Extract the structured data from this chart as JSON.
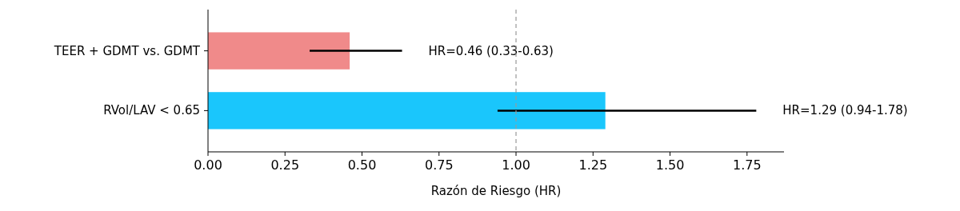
{
  "chart_data": {
    "type": "bar",
    "orientation": "horizontal",
    "xlabel": "Razón de Riesgo (HR)",
    "categories": [
      "TEER + GDMT vs. GDMT",
      "RVol/LAV < 0.65"
    ],
    "values": [
      0.46,
      1.29
    ],
    "colors": [
      "#f08a8a",
      "#1ac6fc"
    ],
    "errors": [
      [
        0.33,
        0.63
      ],
      [
        0.94,
        1.78
      ]
    ],
    "annotations": [
      {
        "text": "HR=0.46 (0.33-0.63)",
        "x": 0.63,
        "y": "TEER + GDMT vs. GDMT"
      },
      {
        "text": "HR=1.29 (0.94-1.78)",
        "x": 1.78,
        "y": "RVol/LAV < 0.65"
      }
    ],
    "xlim": [
      0,
      1.87
    ],
    "xticks": [
      {
        "value": 0,
        "label": "0.00"
      },
      {
        "value": 0.25,
        "label": "0.25"
      },
      {
        "value": 0.5,
        "label": "0.50"
      },
      {
        "value": 0.75,
        "label": "0.75"
      },
      {
        "value": 1,
        "label": "1.00"
      },
      {
        "value": 1.25,
        "label": "1.25"
      },
      {
        "value": 1.5,
        "label": "1.50"
      },
      {
        "value": 1.75,
        "label": "1.75"
      }
    ],
    "ref_lines": [
      {
        "axis": "x",
        "value": 1,
        "color": "#999999",
        "line_style": "dashed"
      }
    ]
  }
}
